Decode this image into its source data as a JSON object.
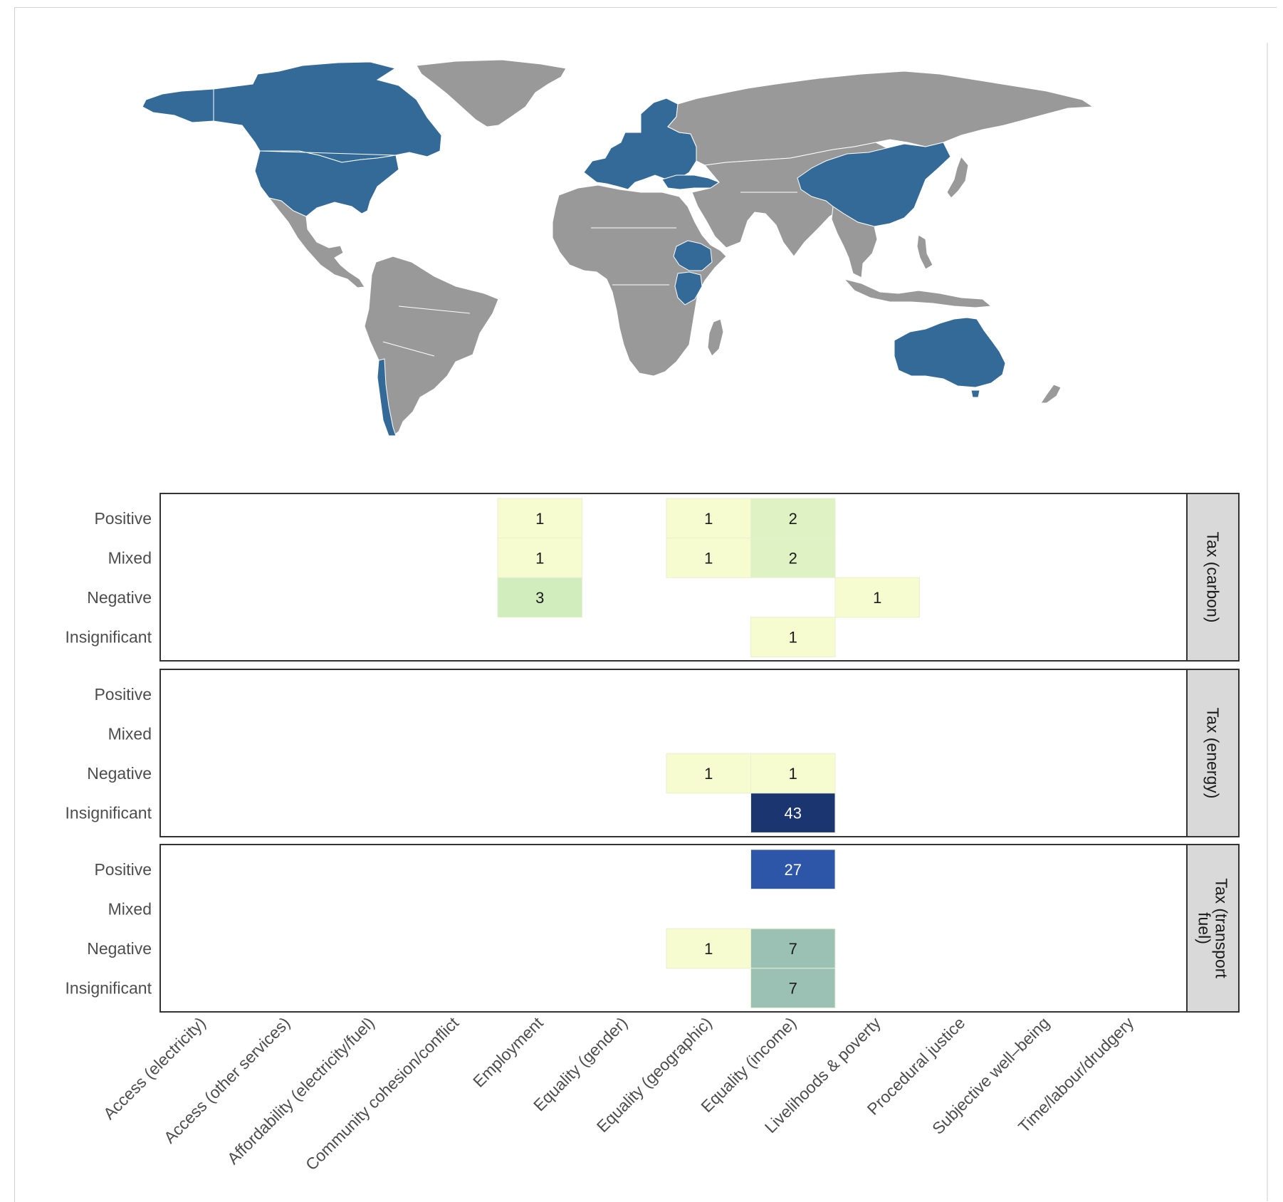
{
  "colors": {
    "land": "#999999",
    "studied": "#336a98",
    "border": "#ffffff",
    "strip": "#d9d9d9",
    "scale_low": "#f7fcd0",
    "scale_mid": "#c5e8b8",
    "scale_high": "#2c55a8",
    "scale_top": "#1b3570"
  },
  "map": {
    "studied_regions": [
      "Canada",
      "United States",
      "Chile",
      "Northern & Western Europe",
      "Turkey",
      "China",
      "Ethiopia",
      "Kenya",
      "Australia"
    ]
  },
  "chart_data": {
    "type": "heatmap",
    "x_categories": [
      "Access (electricity)",
      "Access (other services)",
      "Affordability (electricity/fuel)",
      "Community cohesion/conflict",
      "Employment",
      "Equality (gender)",
      "Equality (geographic)",
      "Equality (income)",
      "Livelihoods & poverty",
      "Procedural justice",
      "Subjective well–being",
      "Time/labour/drudgery"
    ],
    "y_categories": [
      "Positive",
      "Mixed",
      "Negative",
      "Insignificant"
    ],
    "panels": [
      {
        "strip": "Tax (carbon)",
        "cells": [
          {
            "x": "Employment",
            "y": "Positive",
            "value": 1
          },
          {
            "x": "Employment",
            "y": "Mixed",
            "value": 1
          },
          {
            "x": "Employment",
            "y": "Negative",
            "value": 3
          },
          {
            "x": "Equality (geographic)",
            "y": "Positive",
            "value": 1
          },
          {
            "x": "Equality (geographic)",
            "y": "Mixed",
            "value": 1
          },
          {
            "x": "Equality (income)",
            "y": "Positive",
            "value": 2
          },
          {
            "x": "Equality (income)",
            "y": "Mixed",
            "value": 2
          },
          {
            "x": "Equality (income)",
            "y": "Insignificant",
            "value": 1
          },
          {
            "x": "Livelihoods & poverty",
            "y": "Negative",
            "value": 1
          }
        ]
      },
      {
        "strip": "Tax (energy)",
        "cells": [
          {
            "x": "Equality (geographic)",
            "y": "Negative",
            "value": 1
          },
          {
            "x": "Equality (income)",
            "y": "Negative",
            "value": 1
          },
          {
            "x": "Equality (income)",
            "y": "Insignificant",
            "value": 43
          }
        ]
      },
      {
        "strip": "Tax (transport fuel)",
        "strip_lines": [
          "Tax (transport",
          "fuel)"
        ],
        "cells": [
          {
            "x": "Equality (income)",
            "y": "Positive",
            "value": 27
          },
          {
            "x": "Equality (geographic)",
            "y": "Negative",
            "value": 1
          },
          {
            "x": "Equality (income)",
            "y": "Negative",
            "value": 7
          },
          {
            "x": "Equality (income)",
            "y": "Insignificant",
            "value": 7
          }
        ]
      }
    ],
    "value_range": [
      1,
      43
    ],
    "legend": "none",
    "grid": false
  }
}
